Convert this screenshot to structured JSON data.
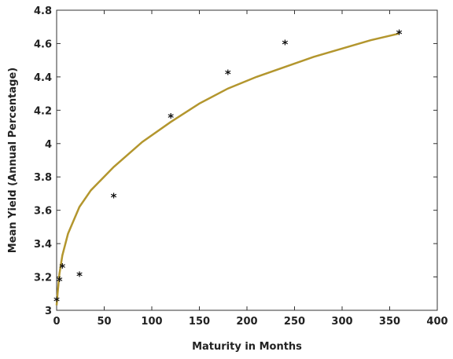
{
  "chart_data": {
    "type": "scatter",
    "title": "",
    "xlabel": "Maturity in Months",
    "ylabel": "Mean Yield (Annual Percentage)",
    "xlim": [
      0,
      400
    ],
    "ylim": [
      3,
      4.8
    ],
    "xticks": [
      0,
      50,
      100,
      150,
      200,
      250,
      300,
      350,
      400
    ],
    "yticks": [
      3,
      3.2,
      3.4,
      3.6,
      3.8,
      4,
      4.2,
      4.4,
      4.6,
      4.8
    ],
    "xtick_labels": [
      "0",
      "50",
      "100",
      "150",
      "200",
      "250",
      "300",
      "350",
      "400"
    ],
    "ytick_labels": [
      "3",
      "3.2",
      "3.4",
      "3.6",
      "3.8",
      "4",
      "4.2",
      "4.4",
      "4.6",
      "4.8"
    ],
    "grid": false,
    "series": [
      {
        "marker": "asterisk",
        "color": "#111111",
        "x": [
          0,
          3,
          6,
          24,
          60,
          120,
          180,
          240,
          360
        ],
        "y": [
          3.06,
          3.18,
          3.26,
          3.21,
          3.68,
          4.16,
          4.42,
          4.6,
          4.66
        ]
      },
      {
        "type": "line",
        "color": "#b3962e",
        "x": [
          0,
          1,
          3,
          6,
          12,
          24,
          36,
          60,
          90,
          120,
          150,
          180,
          210,
          240,
          270,
          300,
          330,
          360
        ],
        "y": [
          3.03,
          3.1,
          3.22,
          3.33,
          3.46,
          3.62,
          3.72,
          3.86,
          4.01,
          4.13,
          4.24,
          4.33,
          4.4,
          4.46,
          4.52,
          4.57,
          4.62,
          4.66
        ]
      }
    ]
  }
}
